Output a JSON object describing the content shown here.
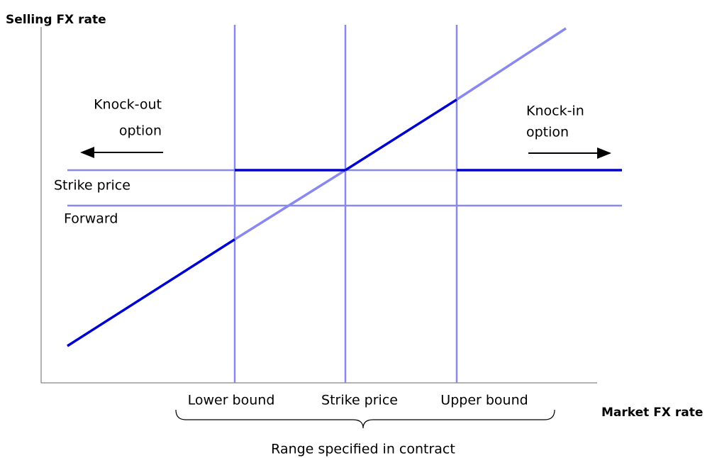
{
  "axes": {
    "y_label": "Selling FX rate",
    "x_label": "Market FX rate"
  },
  "annotations": {
    "knock_out": [
      "Knock-out",
      "option"
    ],
    "knock_in": [
      "Knock-in",
      "option"
    ]
  },
  "horizontal_lines": {
    "strike": "Strike price",
    "forward": "Forward"
  },
  "vertical_lines": {
    "lower": "Lower bound",
    "strike": "Strike price",
    "upper": "Upper bound"
  },
  "range_label": "Range specified in contract"
}
